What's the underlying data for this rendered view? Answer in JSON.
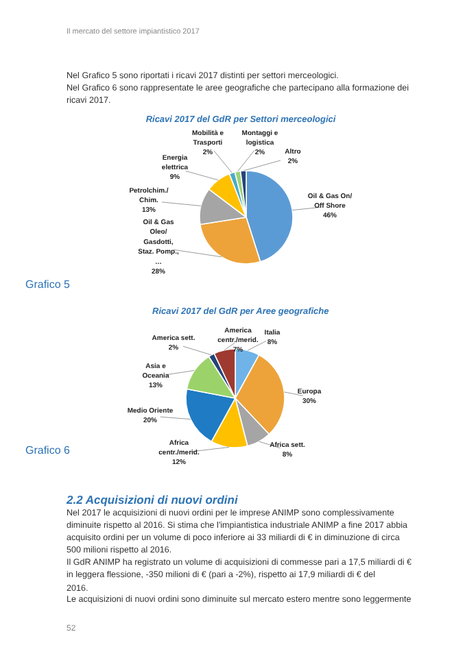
{
  "chart_data": [
    {
      "type": "pie",
      "title": "Ricavi 2017 del GdR per Settori merceologici",
      "categories": [
        "Oil & Gas On/ Off Shore",
        "Oil & Gas Oleo/ Gasdotti, Staz. Pomp., …",
        "Petrolchim./ Chim.",
        "Energia elettrica",
        "Mobilità e Trasporti",
        "Montaggi e logistica",
        "Altro"
      ],
      "values": [
        46,
        28,
        13,
        9,
        2,
        2,
        2
      ],
      "value_labels": [
        "46%",
        "28%",
        "13%",
        "9%",
        "2%",
        "2%",
        "2%"
      ],
      "colors": [
        "#5b9bd5",
        "#eda33a",
        "#a5a5a5",
        "#ffc000",
        "#4bacc6",
        "#9bd37a",
        "#264478"
      ],
      "annotations": [
        "Il mercato del settore impiantistico 2017",
        "Nel Grafico 5 sono riportati i ricavi 2017 distinti per settori merceologici.",
        "Nel Grafico 6 sono rappresentate le aree geografiche che partecipano alla formazione dei ricavi 2017.",
        "Grafico 5"
      ]
    },
    {
      "type": "pie",
      "title": "Ricavi 2017 del GdR per Aree geografiche",
      "categories": [
        "Italia",
        "Europa",
        "Africa sett.",
        "Africa centr./merid.",
        "Medio Oriente",
        "Asia e Oceania",
        "America sett.",
        "America centr./merid."
      ],
      "values": [
        8,
        30,
        8,
        12,
        20,
        13,
        2,
        7
      ],
      "value_labels": [
        "8%",
        "30%",
        "8%",
        "12%",
        "20%",
        "13%",
        "2%",
        "7%"
      ],
      "colors": [
        "#6fb3e8",
        "#eda33a",
        "#a5a5a5",
        "#ffc000",
        "#1f7bc4",
        "#9bd36a",
        "#264478",
        "#9e3a2f"
      ],
      "annotations": [
        "Grafico 6",
        "2.2 Acquisizioni di nuovi ordini",
        "Nel 2017 le acquisizioni di nuovi ordini per le imprese ANIMP sono complessivamente diminuite rispetto al 2016. Si stima che l'impiantistica industriale ANIMP a fine 2017 abbia acquisito ordini per un volume di poco inferiore ai 33 miliardi di € in diminuzione di circa 500 milioni rispetto al 2016.",
        "Il GdR ANIMP ha registrato un volume di acquisizioni di commesse pari a 17,5 miliardi di € in leggera flessione, -350 milioni di € (pari a -2%), rispetto ai 17,9 miliardi di € del 2016.",
        "Le acquisizioni di nuovi ordini sono diminuite sul mercato estero mentre sono leggermente",
        "52"
      ]
    }
  ]
}
